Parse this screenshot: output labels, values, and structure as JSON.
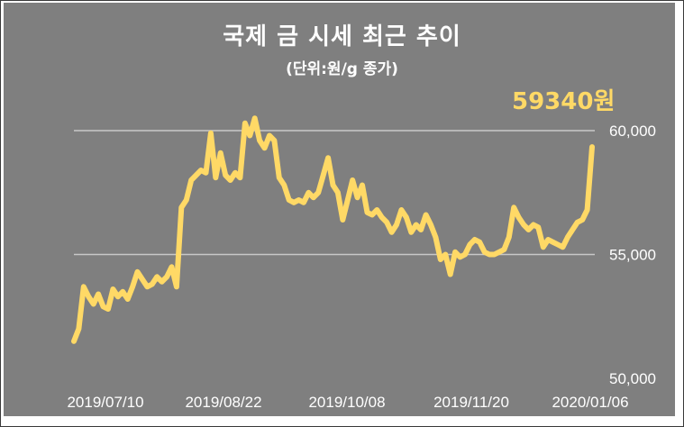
{
  "chart_data": {
    "type": "line",
    "title": "국제 금 시세 최근 추이",
    "subtitle": "(단위:원/g 종가)",
    "annotation": "59340원",
    "line_color": "#ffd966",
    "background_color": "#7f7f7f",
    "grid": true,
    "ylim": [
      50000,
      60000
    ],
    "y_ticks": [
      "60,000",
      "55,000",
      "50,000"
    ],
    "y_tick_values": [
      60000,
      55000,
      50000
    ],
    "x_tick_labels": [
      "2019/07/10",
      "2019/08/22",
      "2019/10/08",
      "2019/11/20",
      "2020/01/06"
    ],
    "series": [
      {
        "values": [
          51500,
          52000,
          53700,
          53300,
          53000,
          53400,
          52900,
          52800,
          53600,
          53300,
          53500,
          53200,
          53700,
          54300,
          54000,
          53700,
          53800,
          54100,
          53900,
          54100,
          54500,
          53700,
          56900,
          57200,
          58000,
          58200,
          58400,
          58300,
          59900,
          58100,
          59100,
          58200,
          58000,
          58300,
          58100,
          60300,
          59800,
          60500,
          59600,
          59300,
          59800,
          59600,
          58100,
          57800,
          57200,
          57100,
          57200,
          57100,
          57500,
          57300,
          57500,
          58200,
          58900,
          57800,
          57500,
          56400,
          57200,
          58000,
          57300,
          57800,
          56700,
          56600,
          56800,
          56500,
          56300,
          55900,
          56200,
          56800,
          56500,
          55900,
          56200,
          56000,
          56600,
          56200,
          55700,
          54800,
          55000,
          54200,
          55100,
          54900,
          55000,
          55400,
          55600,
          55500,
          55100,
          55000,
          55000,
          55100,
          55200,
          55700,
          56900,
          56500,
          56200,
          56000,
          56200,
          56100,
          55300,
          55600,
          55500,
          55400,
          55300,
          55700,
          56000,
          56300,
          56400,
          56800,
          59340
        ]
      }
    ]
  }
}
